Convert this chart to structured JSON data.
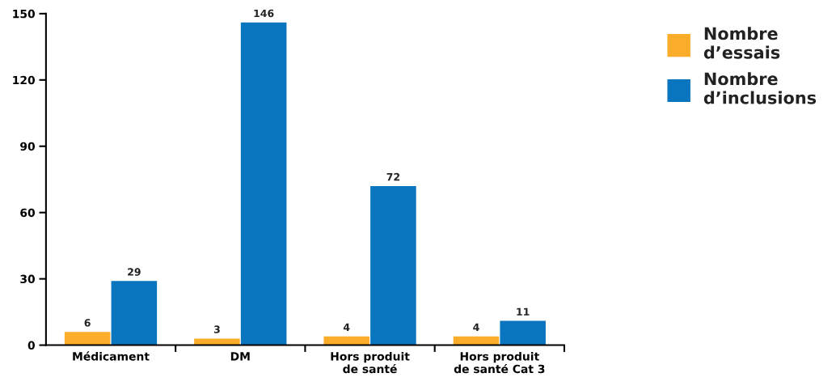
{
  "chart_data": {
    "type": "bar",
    "categories": [
      "Médicament",
      "DM",
      "Hors produit\nde santé",
      "Hors produit\nde santé Cat 3"
    ],
    "series": [
      {
        "name": "Nombre\nd’essais",
        "color": "#f9ad2a",
        "values": [
          6,
          3,
          4,
          4
        ]
      },
      {
        "name": "Nombre\nd’inclusions",
        "color": "#0a75bf",
        "values": [
          29,
          146,
          72,
          11
        ]
      }
    ],
    "ylim": [
      0,
      150
    ],
    "yticks": [
      0,
      30,
      60,
      90,
      120,
      150
    ],
    "data_labels": true,
    "grid": false,
    "legend": "top right"
  }
}
